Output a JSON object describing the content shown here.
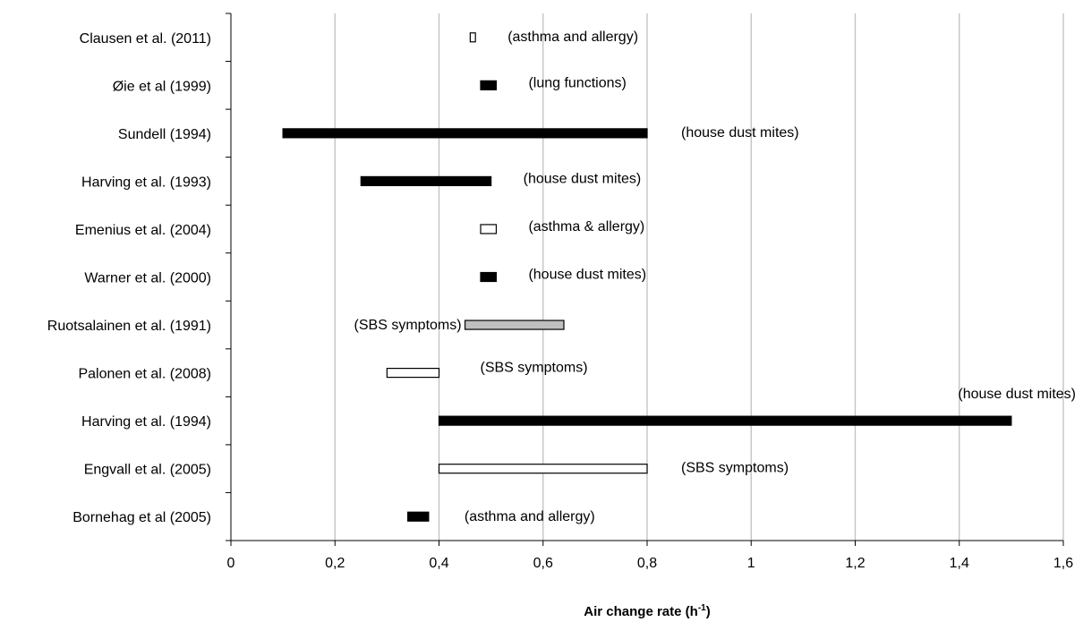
{
  "chart_data": {
    "type": "bar",
    "orientation": "horizontal-range",
    "title": "",
    "xlabel": "Air change rate (h",
    "xlabel_sup": "-1",
    "xlabel_end": ")",
    "ylabel": "",
    "xlim": [
      0,
      1.6
    ],
    "x_ticks": [
      0,
      0.2,
      0.4,
      0.6,
      0.8,
      1.0,
      1.2,
      1.4,
      1.6
    ],
    "x_tick_labels": [
      "0",
      "0,2",
      "0,4",
      "0,6",
      "0,8",
      "1",
      "1,2",
      "1,4",
      "1,6"
    ],
    "grid": "vertical",
    "colors": {
      "black": "#000000",
      "white": "#ffffff",
      "gray": "#bfbfbf",
      "grid": "#c0c0c0"
    },
    "studies": [
      {
        "name": "Clausen et al. (2011)",
        "start": 0.46,
        "end": 0.47,
        "fill": "white",
        "note": "(asthma and allergy)"
      },
      {
        "name": "Øie et al (1999)",
        "start": 0.48,
        "end": 0.51,
        "fill": "black",
        "note": "(lung functions)"
      },
      {
        "name": "Sundell (1994)",
        "start": 0.1,
        "end": 0.8,
        "fill": "black",
        "note": "(house dust mites)"
      },
      {
        "name": "Harving et al. (1993)",
        "start": 0.25,
        "end": 0.5,
        "fill": "black",
        "note": "(house dust mites)"
      },
      {
        "name": "Emenius et al. (2004)",
        "start": 0.48,
        "end": 0.51,
        "fill": "white",
        "note": "(asthma & allergy)"
      },
      {
        "name": "Warner et al. (2000)",
        "start": 0.48,
        "end": 0.51,
        "fill": "black",
        "note": "(house dust mites)"
      },
      {
        "name": "Ruotsalainen et al. (1991)",
        "start": 0.45,
        "end": 0.64,
        "fill": "gray",
        "note": "(SBS symptoms)"
      },
      {
        "name": "Palonen et al. (2008)",
        "start": 0.3,
        "end": 0.4,
        "fill": "white",
        "note": "(SBS symptoms)"
      },
      {
        "name": "Harving et al. (1994)",
        "start": 0.4,
        "end": 1.5,
        "fill": "black",
        "note": "(house dust mites)"
      },
      {
        "name": "Engvall et al. (2005)",
        "start": 0.4,
        "end": 0.8,
        "fill": "white",
        "note": "(SBS symptoms)"
      },
      {
        "name": "Bornehag et al (2005)",
        "start": 0.34,
        "end": 0.38,
        "fill": "black",
        "note": "(asthma and allergy)"
      }
    ]
  }
}
